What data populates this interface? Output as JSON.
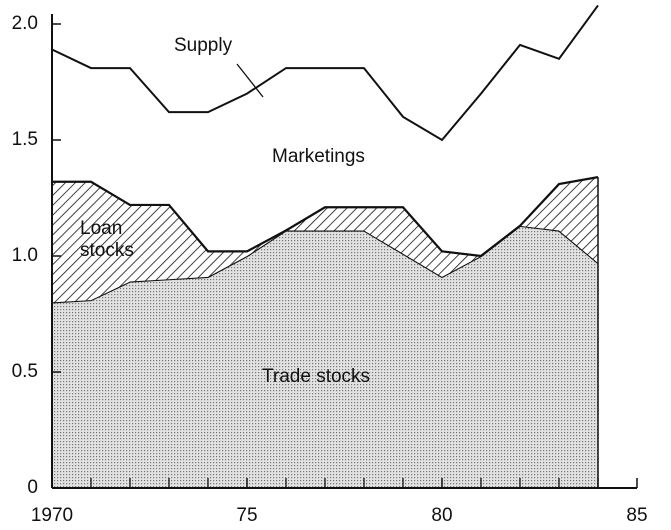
{
  "chart_data": {
    "type": "stacked_area_line",
    "x": [
      1970,
      1971,
      1972,
      1973,
      1974,
      1975,
      1976,
      1977,
      1978,
      1979,
      1980,
      1981,
      1982,
      1983,
      1984
    ],
    "series": [
      {
        "name": "Trade stocks",
        "kind": "area",
        "color": "#777777",
        "pattern": "dots",
        "values": [
          0.8,
          0.81,
          0.89,
          0.9,
          0.91,
          1.0,
          1.11,
          1.11,
          1.11,
          1.01,
          0.91,
          1.0,
          1.13,
          1.11,
          0.97
        ]
      },
      {
        "name": "Loan stocks",
        "kind": "area",
        "color": "#111111",
        "pattern": "hatch",
        "values": [
          0.52,
          0.51,
          0.33,
          0.32,
          0.11,
          0.02,
          0,
          0.1,
          0.1,
          0.2,
          0.11,
          0,
          0,
          0.2,
          0.37
        ]
      },
      {
        "name": "Supply",
        "kind": "line",
        "color": "#111111",
        "values": [
          1.89,
          1.81,
          1.81,
          1.62,
          1.62,
          1.7,
          1.81,
          1.81,
          1.81,
          1.6,
          1.5,
          1.7,
          1.91,
          1.85,
          2.08
        ]
      }
    ],
    "annotations": [
      "Marketings"
    ],
    "xlim": [
      1970,
      1985
    ],
    "xticks": [
      1970,
      {
        "value": 1975,
        "label": "75"
      },
      {
        "value": 1980,
        "label": "80"
      },
      {
        "value": 1985,
        "label": "85"
      }
    ],
    "xminorticks": [
      1971,
      1972,
      1973,
      1974,
      1976,
      1977,
      1978,
      1979,
      1981,
      1982,
      1983,
      1984
    ],
    "ylim": [
      0,
      2
    ],
    "yticks": [
      0,
      0.5,
      {
        "value": 1,
        "label": "1.0"
      },
      1.5,
      {
        "value": 2,
        "label": "2.0"
      }
    ],
    "grid": false
  }
}
